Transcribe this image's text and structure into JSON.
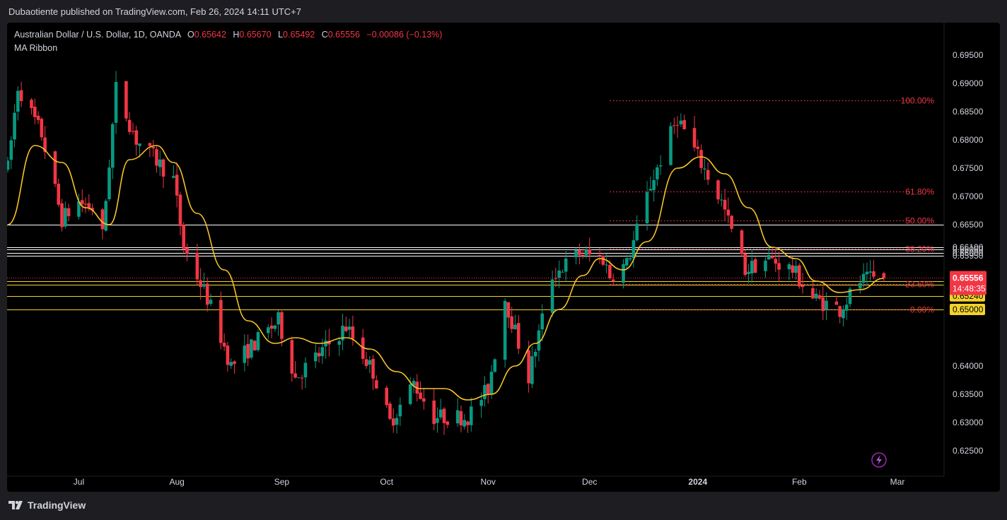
{
  "header": {
    "publisher": "Dubaotiente published on TradingView.com, Feb 26, 2024 14:11 UTC+7"
  },
  "legend": {
    "symbol": "Australian Dollar / U.S. Dollar, 1D, OANDA",
    "o_label": "O",
    "o": "0.65642",
    "h_label": "H",
    "h": "0.65670",
    "l_label": "L",
    "l": "0.65492",
    "c_label": "C",
    "c": "0.65556",
    "change": "−0.00086 (−0.13%)",
    "indicator": "MA Ribbon"
  },
  "footer": {
    "brand": "TradingView"
  },
  "colors": {
    "up": "#089981",
    "down": "#f23645",
    "ma": "#f7c325",
    "fib": "#f23645",
    "level_white": "#ffffff",
    "level_yellow": "#f2d22b"
  },
  "icons": {
    "logo": "tradingview-logo-icon",
    "lightning": "lightning-icon"
  },
  "chart_data": {
    "type": "candlestick",
    "symbol": "AUDUSD",
    "timeframe": "1D",
    "ylim": [
      0.622,
      0.699
    ],
    "y_ticks": [
      "0.69500",
      "0.69000",
      "0.68500",
      "0.68000",
      "0.67500",
      "0.67000",
      "0.64000",
      "0.63500",
      "0.63000",
      "0.62500"
    ],
    "x_ticks": [
      {
        "label": "Jul",
        "date": "2023-07-03"
      },
      {
        "label": "Aug",
        "date": "2023-08-01"
      },
      {
        "label": "Sep",
        "date": "2023-09-01"
      },
      {
        "label": "Oct",
        "date": "2023-10-02"
      },
      {
        "label": "Nov",
        "date": "2023-11-01"
      },
      {
        "label": "Dec",
        "date": "2023-12-01"
      },
      {
        "label": "2024",
        "date": "2024-01-02"
      },
      {
        "label": "Feb",
        "date": "2024-02-01"
      },
      {
        "label": "Mar",
        "date": "2024-03-01"
      }
    ],
    "range": {
      "start": "2023-06-12",
      "end": "2024-02-26"
    },
    "price_path": [
      [
        "2023-06-12",
        0.675
      ],
      [
        "2023-06-15",
        0.6895
      ],
      [
        "2023-06-22",
        0.681
      ],
      [
        "2023-06-28",
        0.666
      ],
      [
        "2023-07-03",
        0.669
      ],
      [
        "2023-07-07",
        0.668
      ],
      [
        "2023-07-10",
        0.663
      ],
      [
        "2023-07-14",
        0.689
      ],
      [
        "2023-07-20",
        0.68
      ],
      [
        "2023-07-25",
        0.677
      ],
      [
        "2023-07-31",
        0.673
      ],
      [
        "2023-08-03",
        0.661
      ],
      [
        "2023-08-10",
        0.652
      ],
      [
        "2023-08-17",
        0.64
      ],
      [
        "2023-08-24",
        0.644
      ],
      [
        "2023-08-31",
        0.648
      ],
      [
        "2023-09-05",
        0.638
      ],
      [
        "2023-09-12",
        0.642
      ],
      [
        "2023-09-20",
        0.647
      ],
      [
        "2023-09-28",
        0.639
      ],
      [
        "2023-10-03",
        0.63
      ],
      [
        "2023-10-10",
        0.637
      ],
      [
        "2023-10-16",
        0.631
      ],
      [
        "2023-10-26",
        0.631
      ],
      [
        "2023-11-01",
        0.636
      ],
      [
        "2023-11-06",
        0.652
      ],
      [
        "2023-11-13",
        0.638
      ],
      [
        "2023-11-20",
        0.656
      ],
      [
        "2023-11-28",
        0.66
      ],
      [
        "2023-12-05",
        0.659
      ],
      [
        "2023-12-07",
        0.656
      ],
      [
        "2023-12-12",
        0.658
      ],
      [
        "2023-12-19",
        0.672
      ],
      [
        "2023-12-27",
        0.684
      ],
      [
        "2024-01-02",
        0.677
      ],
      [
        "2024-01-09",
        0.669
      ],
      [
        "2024-01-16",
        0.657
      ],
      [
        "2024-01-23",
        0.659
      ],
      [
        "2024-01-30",
        0.657
      ],
      [
        "2024-02-05",
        0.652
      ],
      [
        "2024-02-13",
        0.65
      ],
      [
        "2024-02-19",
        0.655
      ],
      [
        "2024-02-26",
        0.65556
      ]
    ],
    "last_candle": {
      "open": 0.65642,
      "high": 0.6567,
      "low": 0.65492,
      "close": 0.65556
    },
    "ma": [
      [
        "2023-06-12",
        0.665
      ],
      [
        "2023-06-20",
        0.679
      ],
      [
        "2023-06-28",
        0.676
      ],
      [
        "2023-07-05",
        0.668
      ],
      [
        "2023-07-12",
        0.665
      ],
      [
        "2023-07-18",
        0.6765
      ],
      [
        "2023-07-26",
        0.679
      ],
      [
        "2023-07-31",
        0.676
      ],
      [
        "2023-08-07",
        0.667
      ],
      [
        "2023-08-15",
        0.657
      ],
      [
        "2023-08-22",
        0.648
      ],
      [
        "2023-08-30",
        0.644
      ],
      [
        "2023-09-05",
        0.645
      ],
      [
        "2023-09-12",
        0.644
      ],
      [
        "2023-09-20",
        0.645
      ],
      [
        "2023-09-27",
        0.643
      ],
      [
        "2023-10-05",
        0.639
      ],
      [
        "2023-10-12",
        0.636
      ],
      [
        "2023-10-19",
        0.636
      ],
      [
        "2023-10-26",
        0.634
      ],
      [
        "2023-11-02",
        0.635
      ],
      [
        "2023-11-09",
        0.64
      ],
      [
        "2023-11-15",
        0.644
      ],
      [
        "2023-11-22",
        0.65
      ],
      [
        "2023-11-29",
        0.656
      ],
      [
        "2023-12-04",
        0.659
      ],
      [
        "2023-12-11",
        0.657
      ],
      [
        "2023-12-18",
        0.662
      ],
      [
        "2023-12-27",
        0.675
      ],
      [
        "2024-01-03",
        0.677
      ],
      [
        "2024-01-10",
        0.674
      ],
      [
        "2024-01-17",
        0.668
      ],
      [
        "2024-01-24",
        0.661
      ],
      [
        "2024-01-31",
        0.659
      ],
      [
        "2024-02-06",
        0.655
      ],
      [
        "2024-02-13",
        0.653
      ],
      [
        "2024-02-19",
        0.6535
      ],
      [
        "2024-02-26",
        0.6555
      ]
    ],
    "horizontal_levels": [
      {
        "price": 0.665,
        "label": "0.66500",
        "color": "#ffffff",
        "axis_box": false
      },
      {
        "price": 0.661,
        "label": "0.66100",
        "color": "#ffffff",
        "axis_box": false
      },
      {
        "price": 0.6606,
        "label": "0.66060",
        "color": "#ffffff",
        "axis_box": false
      },
      {
        "price": 0.66,
        "label": "0.66000",
        "color": "#ffffff",
        "axis_box": false
      },
      {
        "price": 0.6595,
        "label": "0.65950",
        "color": "#ffffff",
        "axis_box": false
      },
      {
        "price": 0.655,
        "label": "0.65500",
        "color": "#f2d22b",
        "axis_box": true
      },
      {
        "price": 0.6544,
        "label": "0.65440",
        "color": "#f2d22b",
        "axis_box": true
      },
      {
        "price": 0.6524,
        "label": "0.65240",
        "color": "#f2d22b",
        "axis_box": true
      },
      {
        "price": 0.65,
        "label": "0.65000",
        "color": "#f2d22b",
        "axis_box": true
      }
    ],
    "fib_levels": [
      {
        "label": "100.00%",
        "price": 0.687
      },
      {
        "label": "61.80%",
        "price": 0.6709
      },
      {
        "label": "50.00%",
        "price": 0.6658
      },
      {
        "label": "38.20%",
        "price": 0.6608
      },
      {
        "label": "23.60%",
        "price": 0.6545
      },
      {
        "label": "0.00%",
        "price": 0.65
      }
    ],
    "fib_start": "2023-12-07",
    "price_tag": {
      "price": 0.65556,
      "label": "0.65556",
      "countdown": "14:48:35"
    }
  }
}
